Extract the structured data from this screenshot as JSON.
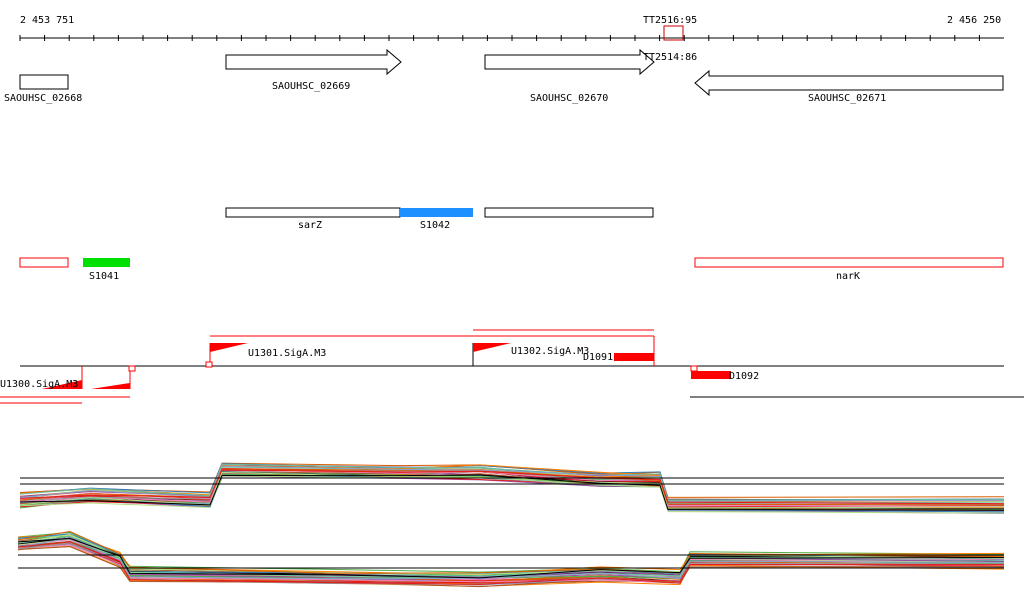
{
  "ruler": {
    "start": "2 453 751",
    "end": "2 456 250",
    "marker_top": "TT2516:95",
    "marker_bottom": "TT2514:86"
  },
  "genes": [
    {
      "label": "SAOUHSC_02668",
      "strand": "none"
    },
    {
      "label": "SAOUHSC_02669",
      "strand": "+"
    },
    {
      "label": "SAOUHSC_02670",
      "strand": "+"
    },
    {
      "label": "SAOUHSC_02671",
      "strand": "-"
    }
  ],
  "features": [
    {
      "label": "sarZ"
    },
    {
      "label": "S1042",
      "color": "#1e90ff"
    },
    {
      "label": "S1041",
      "color": "#00e000"
    },
    {
      "label": "narK",
      "color": "#ff0000"
    }
  ],
  "promoters": [
    {
      "label": "U1300.SigA.M3"
    },
    {
      "label": "U1301.SigA.M3"
    },
    {
      "label": "U1302.SigA.M3"
    },
    {
      "label": "D1091"
    },
    {
      "label": "D1092"
    }
  ],
  "colors": {
    "accent": "#ff0000"
  }
}
